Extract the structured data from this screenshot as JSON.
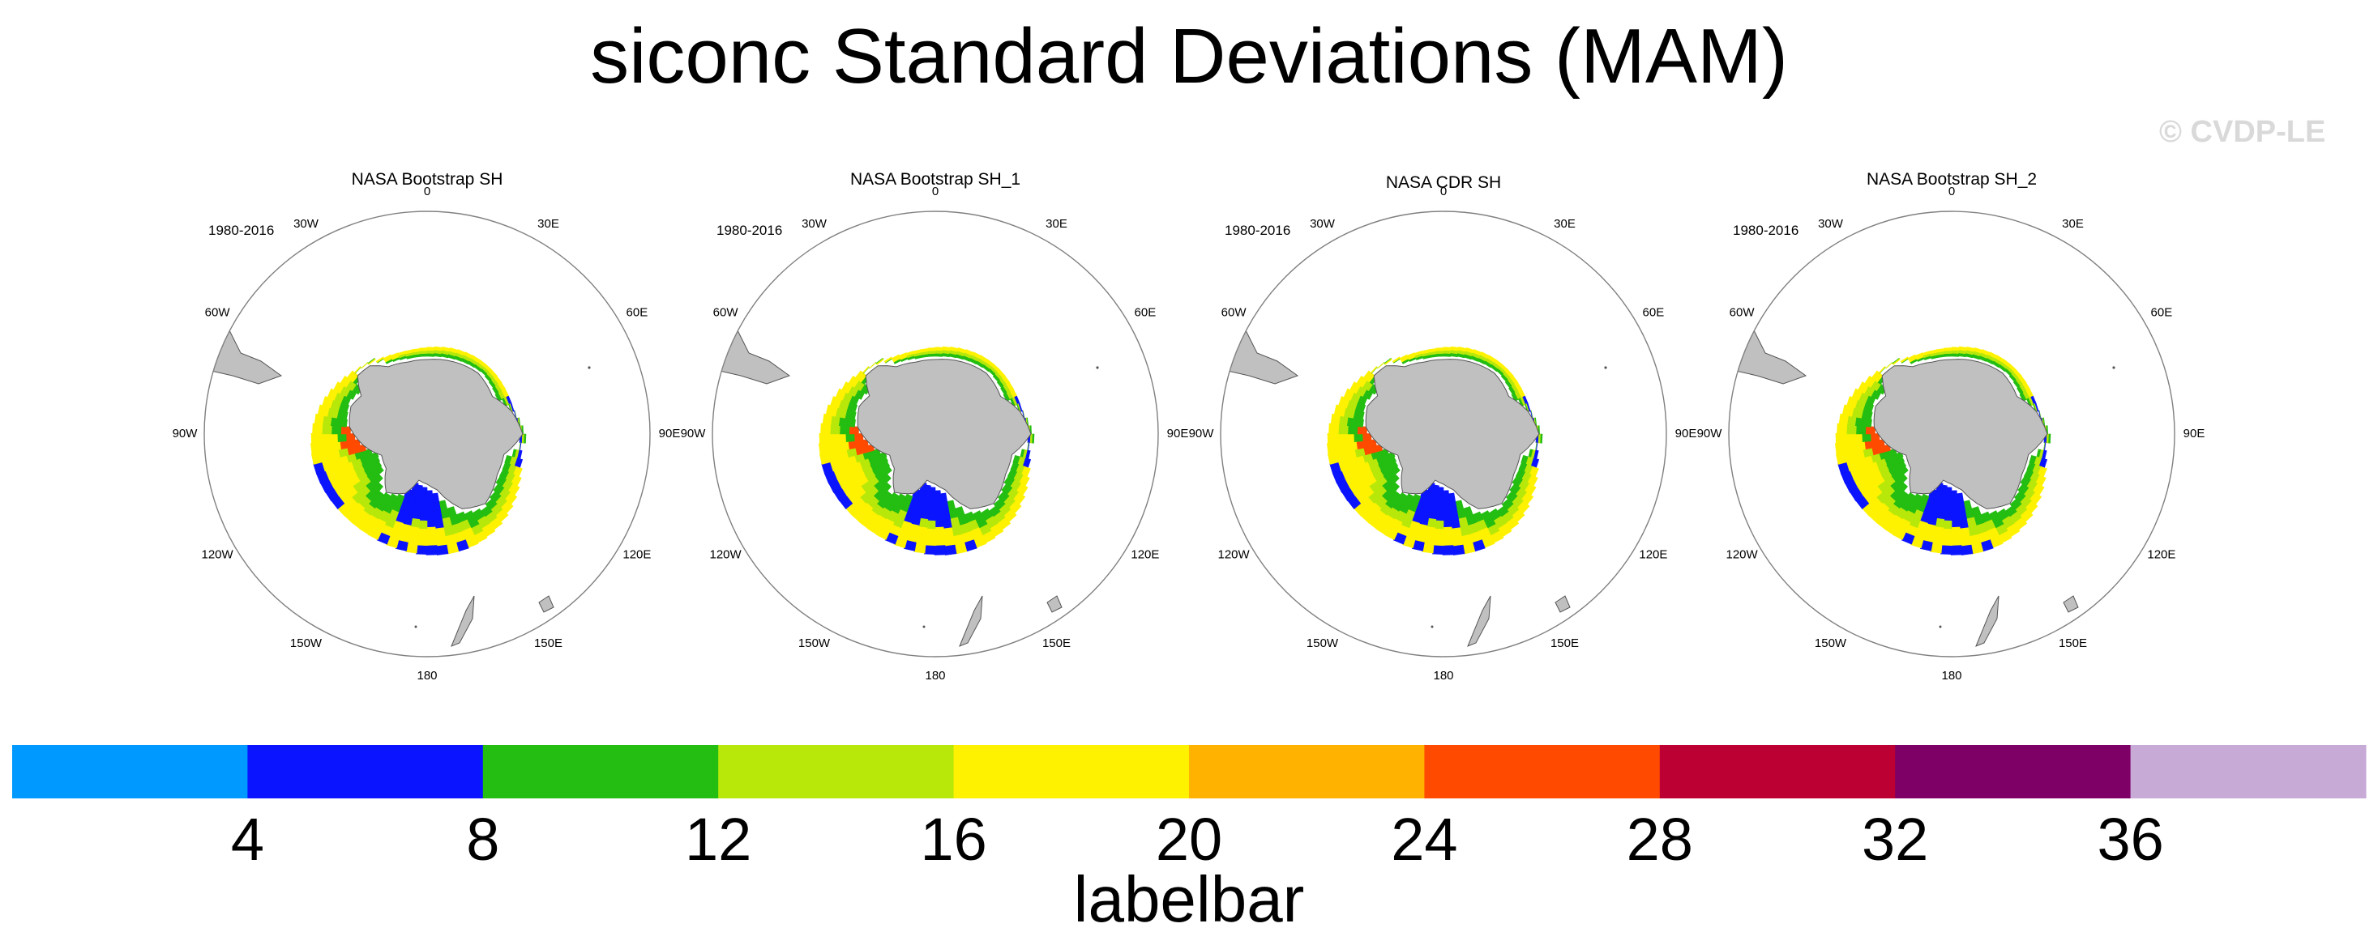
{
  "title": "siconc Standard Deviations (MAM)",
  "watermark": "© CVDP-LE",
  "chart_data": {
    "type": "heatmap",
    "projection": "south-polar-stereographic",
    "variable": "siconc",
    "season": "MAM",
    "panels": [
      {
        "title": "NASA Bootstrap SH",
        "period": "1980-2016"
      },
      {
        "title": "NASA Bootstrap SH_1",
        "period": "1980-2016"
      },
      {
        "title": "NASA CDR SH",
        "period": "1980-2016"
      },
      {
        "title": "NASA Bootstrap SH_2",
        "period": "1980-2016"
      }
    ],
    "longitude_labels": [
      {
        "lon": 0,
        "label": "0"
      },
      {
        "lon": 30,
        "label": "30E"
      },
      {
        "lon": 60,
        "label": "60E"
      },
      {
        "lon": 90,
        "label": "90E"
      },
      {
        "lon": 120,
        "label": "120E"
      },
      {
        "lon": 150,
        "label": "150E"
      },
      {
        "lon": 180,
        "label": "180"
      },
      {
        "lon": -150,
        "label": "150W"
      },
      {
        "lon": -120,
        "label": "120W"
      },
      {
        "lon": -90,
        "label": "90W"
      },
      {
        "lon": -60,
        "label": "60W"
      },
      {
        "lon": -30,
        "label": "30W"
      }
    ],
    "colorbar": {
      "title": "labelbar",
      "levels": [
        4,
        8,
        12,
        16,
        20,
        24,
        28,
        32,
        36
      ],
      "tick_labels": [
        "4",
        "8",
        "12",
        "16",
        "20",
        "24",
        "28",
        "32",
        "36"
      ],
      "colors": [
        "#0099ff",
        "#0b14ff",
        "#24bd12",
        "#b8e80a",
        "#fff200",
        "#ffb300",
        "#ff4a00",
        "#bd0033",
        "#7e0066",
        "#c8aad6"
      ]
    },
    "land_color": "#c0c0c0",
    "ocean_color": "#ffffff"
  }
}
